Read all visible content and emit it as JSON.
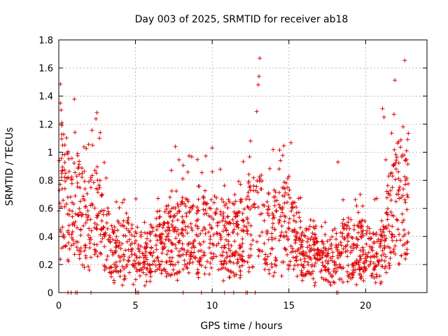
{
  "chart_data": {
    "type": "scatter",
    "title": "Day 003 of 2025, SRMTID for receiver ab18",
    "xlabel": "GPS time / hours",
    "ylabel": "SRMTID / TECUs",
    "xlim": [
      0,
      24
    ],
    "ylim": [
      0,
      1.8
    ],
    "xticks": [
      "0",
      "5",
      "10",
      "15",
      "20"
    ],
    "xtick_values": [
      0,
      5,
      10,
      15,
      20
    ],
    "yticks": [
      "0",
      "0.2",
      "0.4",
      "0.6",
      "0.8",
      "1",
      "1.2",
      "1.4",
      "1.6",
      "1.8"
    ],
    "ytick_values": [
      0,
      0.2,
      0.4,
      0.6,
      0.8,
      1.0,
      1.2,
      1.4,
      1.6,
      1.8
    ],
    "grid": true,
    "marker": "+",
    "color": "#e00000",
    "series": [
      {
        "name": "SRMTID",
        "profile": [
          [
            0.0,
            0.55
          ],
          [
            0.3,
            0.85
          ],
          [
            0.6,
            0.6
          ],
          [
            1.0,
            0.6
          ],
          [
            1.5,
            0.55
          ],
          [
            2.0,
            0.5
          ],
          [
            2.5,
            0.55
          ],
          [
            3.0,
            0.4
          ],
          [
            3.5,
            0.28
          ],
          [
            4.0,
            0.3
          ],
          [
            4.5,
            0.3
          ],
          [
            5.0,
            0.3
          ],
          [
            5.5,
            0.22
          ],
          [
            6.0,
            0.28
          ],
          [
            6.5,
            0.32
          ],
          [
            7.0,
            0.35
          ],
          [
            7.5,
            0.4
          ],
          [
            8.0,
            0.42
          ],
          [
            8.5,
            0.42
          ],
          [
            9.0,
            0.4
          ],
          [
            9.5,
            0.42
          ],
          [
            10.0,
            0.42
          ],
          [
            10.5,
            0.38
          ],
          [
            11.0,
            0.38
          ],
          [
            11.5,
            0.35
          ],
          [
            12.0,
            0.4
          ],
          [
            12.5,
            0.5
          ],
          [
            13.0,
            0.55
          ],
          [
            13.5,
            0.45
          ],
          [
            14.0,
            0.45
          ],
          [
            14.5,
            0.45
          ],
          [
            15.0,
            0.5
          ],
          [
            15.5,
            0.35
          ],
          [
            16.0,
            0.3
          ],
          [
            16.5,
            0.3
          ],
          [
            17.0,
            0.25
          ],
          [
            17.5,
            0.2
          ],
          [
            18.0,
            0.22
          ],
          [
            18.5,
            0.3
          ],
          [
            19.0,
            0.3
          ],
          [
            19.5,
            0.3
          ],
          [
            20.0,
            0.28
          ],
          [
            20.5,
            0.28
          ],
          [
            21.0,
            0.3
          ],
          [
            21.5,
            0.55
          ],
          [
            22.0,
            0.65
          ],
          [
            22.5,
            0.7
          ],
          [
            22.8,
            0.7
          ]
        ],
        "peaks": [
          [
            0.1,
            1.35
          ],
          [
            0.15,
            1.3
          ],
          [
            0.2,
            1.21
          ],
          [
            0.25,
            1.05
          ],
          [
            2.7,
            1.14
          ],
          [
            2.65,
            1.1
          ],
          [
            2.2,
            1.05
          ],
          [
            7.6,
            1.04
          ],
          [
            10.0,
            1.03
          ],
          [
            12.5,
            1.08
          ],
          [
            12.9,
            1.29
          ],
          [
            13.0,
            1.48
          ],
          [
            13.05,
            1.54
          ],
          [
            13.1,
            1.67
          ],
          [
            21.1,
            1.31
          ],
          [
            21.2,
            1.25
          ],
          [
            21.85,
            1.27
          ],
          [
            22.5,
            0.98
          ],
          [
            18.2,
            0.93
          ]
        ],
        "zeros": [
          0.6,
          0.8,
          1.1,
          1.2,
          2.1,
          5.0,
          5.1,
          5.2,
          8.1,
          9.3,
          10.8,
          11.4,
          12.2,
          12.3,
          12.8,
          18.1,
          18.2
        ]
      }
    ]
  }
}
